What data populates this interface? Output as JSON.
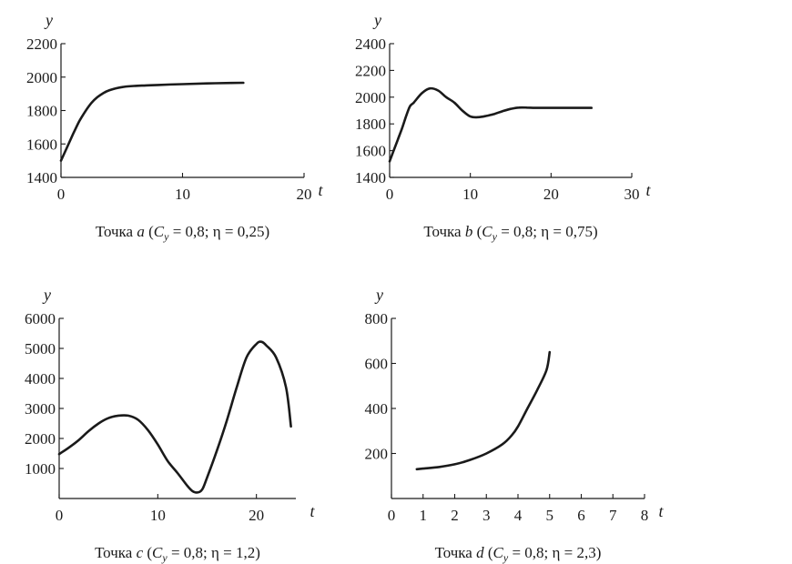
{
  "chart_data": [
    {
      "type": "line",
      "id": "a",
      "caption": {
        "prefix": "Точка ",
        "point": "a",
        "open": " (",
        "coef": "C",
        "sub": "y",
        "params": " = 0,8; η = 0,25)"
      },
      "xlabel": "t",
      "ylabel": "y",
      "xlim": [
        0,
        20
      ],
      "ylim": [
        1400,
        2200
      ],
      "xticks": [
        0,
        10,
        20
      ],
      "yticks": [
        1400,
        1600,
        1800,
        2000,
        2200
      ],
      "series": [
        {
          "name": "y",
          "x": [
            0,
            0.5,
            1,
            1.5,
            2,
            2.5,
            3,
            3.5,
            4,
            5,
            6,
            7,
            8,
            10,
            12,
            14,
            15
          ],
          "y": [
            1500,
            1580,
            1660,
            1735,
            1795,
            1845,
            1880,
            1905,
            1922,
            1940,
            1947,
            1950,
            1953,
            1958,
            1962,
            1965,
            1966
          ]
        }
      ]
    },
    {
      "type": "line",
      "id": "b",
      "caption": {
        "prefix": "Точка ",
        "point": "b",
        "open": " (",
        "coef": "C",
        "sub": "y",
        "params": " = 0,8; η = 0,75)"
      },
      "xlabel": "t",
      "ylabel": "y",
      "xlim": [
        0,
        30
      ],
      "ylim": [
        1400,
        2400
      ],
      "xticks": [
        0,
        10,
        20,
        30
      ],
      "yticks": [
        1400,
        1600,
        1800,
        2000,
        2200,
        2400
      ],
      "series": [
        {
          "name": "y",
          "x": [
            0,
            0.5,
            1,
            1.5,
            2,
            2.5,
            3,
            4,
            5,
            6,
            7,
            8,
            9,
            10,
            11,
            12,
            13,
            14,
            15,
            16,
            17,
            18,
            20,
            22,
            24,
            25
          ],
          "y": [
            1520,
            1600,
            1680,
            1760,
            1850,
            1930,
            1960,
            2030,
            2065,
            2050,
            2000,
            1960,
            1900,
            1855,
            1850,
            1860,
            1875,
            1895,
            1912,
            1922,
            1922,
            1920,
            1920,
            1920,
            1920,
            1920
          ]
        }
      ]
    },
    {
      "type": "line",
      "id": "c",
      "caption": {
        "prefix": "Точка ",
        "point": "c",
        "open": " (",
        "coef": "C",
        "sub": "y",
        "params": " = 0,8; η = 1,2)"
      },
      "xlabel": "t",
      "ylabel": "y",
      "xlim": [
        0,
        24
      ],
      "ylim": [
        0,
        6000
      ],
      "xticks": [
        0,
        10,
        20
      ],
      "yticks": [
        1000,
        2000,
        3000,
        4000,
        5000,
        6000
      ],
      "series": [
        {
          "name": "y",
          "x": [
            0,
            1,
            2,
            3,
            4,
            5,
            6,
            7,
            8,
            9,
            10,
            11,
            12,
            13,
            13.5,
            14,
            14.5,
            15,
            16,
            17,
            18,
            19,
            20,
            20.5,
            21,
            22,
            23,
            23.5
          ],
          "y": [
            1480,
            1700,
            1950,
            2250,
            2500,
            2680,
            2760,
            2760,
            2620,
            2280,
            1800,
            1250,
            850,
            420,
            250,
            200,
            300,
            700,
            1600,
            2600,
            3700,
            4700,
            5150,
            5220,
            5100,
            4700,
            3700,
            2400
          ]
        }
      ]
    },
    {
      "type": "line",
      "id": "d",
      "caption": {
        "prefix": "Точка ",
        "point": "d",
        "open": " (",
        "coef": "C",
        "sub": "y",
        "params": " = 0,8; η = 2,3)"
      },
      "xlabel": "t",
      "ylabel": "y",
      "xlim": [
        0,
        8
      ],
      "ylim": [
        0,
        800
      ],
      "xticks": [
        0,
        1,
        2,
        3,
        4,
        5,
        6,
        7,
        8
      ],
      "yticks": [
        200,
        400,
        600,
        800
      ],
      "series": [
        {
          "name": "y",
          "x": [
            0.8,
            1,
            1.5,
            2,
            2.5,
            3,
            3.5,
            3.8,
            4,
            4.3,
            4.6,
            4.9,
            5
          ],
          "y": [
            130,
            133,
            140,
            152,
            172,
            200,
            240,
            280,
            320,
            400,
            480,
            570,
            650
          ]
        }
      ]
    }
  ]
}
